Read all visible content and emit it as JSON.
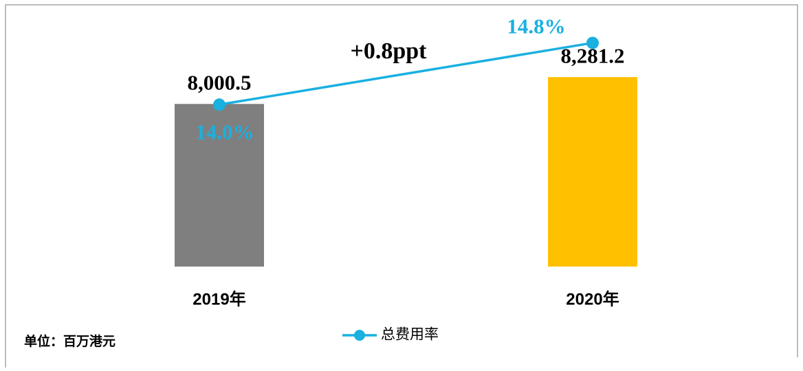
{
  "chart_data": {
    "type": "bar-line",
    "categories": [
      "2019年",
      "2020年"
    ],
    "series": [
      {
        "type": "bar",
        "colors": [
          "#7f7f7f",
          "#ffc000"
        ],
        "values": [
          8000.5,
          8281.2
        ],
        "value_labels": [
          "8,000.5",
          "8,281.2"
        ]
      },
      {
        "type": "line",
        "name": "总费用率",
        "color": "#1ab0e0",
        "axis": "y2",
        "values": [
          14.0,
          14.8
        ],
        "value_labels": [
          "14.0%",
          "14.8%"
        ]
      }
    ],
    "ylim": [
      6300,
      8800
    ],
    "y2lim": [
      11.9,
      15.0
    ],
    "annotations": [
      "+0.8ppt",
      "单位：百万港元"
    ],
    "legend": "bottom"
  }
}
